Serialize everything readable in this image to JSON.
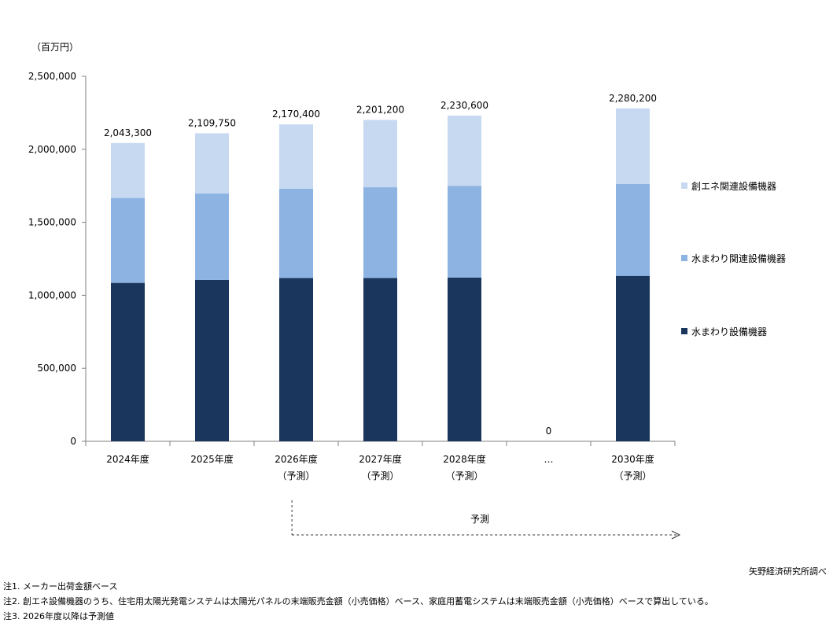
{
  "chart_data": {
    "type": "bar",
    "stacked": true,
    "unit_label": "（百万円）",
    "ylim": [
      0,
      2500000
    ],
    "yticks": [
      "0",
      "500,000",
      "1,000,000",
      "1,500,000",
      "2,000,000",
      "2,500,000"
    ],
    "categories": [
      {
        "label": "2024年度",
        "sub": ""
      },
      {
        "label": "2025年度",
        "sub": ""
      },
      {
        "label": "2026年度",
        "sub": "（予測）"
      },
      {
        "label": "2027年度",
        "sub": "（予測）"
      },
      {
        "label": "2028年度",
        "sub": "（予測）"
      },
      {
        "label": "…",
        "sub": ""
      },
      {
        "label": "2030年度",
        "sub": "（予測）"
      }
    ],
    "series": [
      {
        "name": "水まわり設備機器",
        "color": "#1b365d",
        "values": [
          1085000,
          1105000,
          1118000,
          1118000,
          1122000,
          0,
          1133000
        ]
      },
      {
        "name": "水まわり関連設備機器",
        "color": "#8db3e2",
        "values": [
          582000,
          592000,
          612000,
          622000,
          628000,
          0,
          630000
        ]
      },
      {
        "name": "創エネ関連設備機器",
        "color": "#c6d9f1",
        "values": [
          376300,
          412750,
          440400,
          461200,
          480600,
          0,
          517200
        ]
      }
    ],
    "totals": [
      "2,043,300",
      "2,109,750",
      "2,170,400",
      "2,201,200",
      "2,230,600",
      "0",
      "2,280,200"
    ],
    "legend_position": "right",
    "forecast_label": "予測",
    "grid": false
  },
  "notes": [
    "注1. メーカー出荷金額ベース",
    "注2. 創エネ設備機器のうち、住宅用太陽光発電システムは太陽光パネルの末端販売金額（小売価格）ベース、家庭用蓄電システムは末端販売金額（小売価格）ベースで算出している。",
    "注3. 2026年度以降は予測値"
  ],
  "source": "矢野経済研究所調べ"
}
